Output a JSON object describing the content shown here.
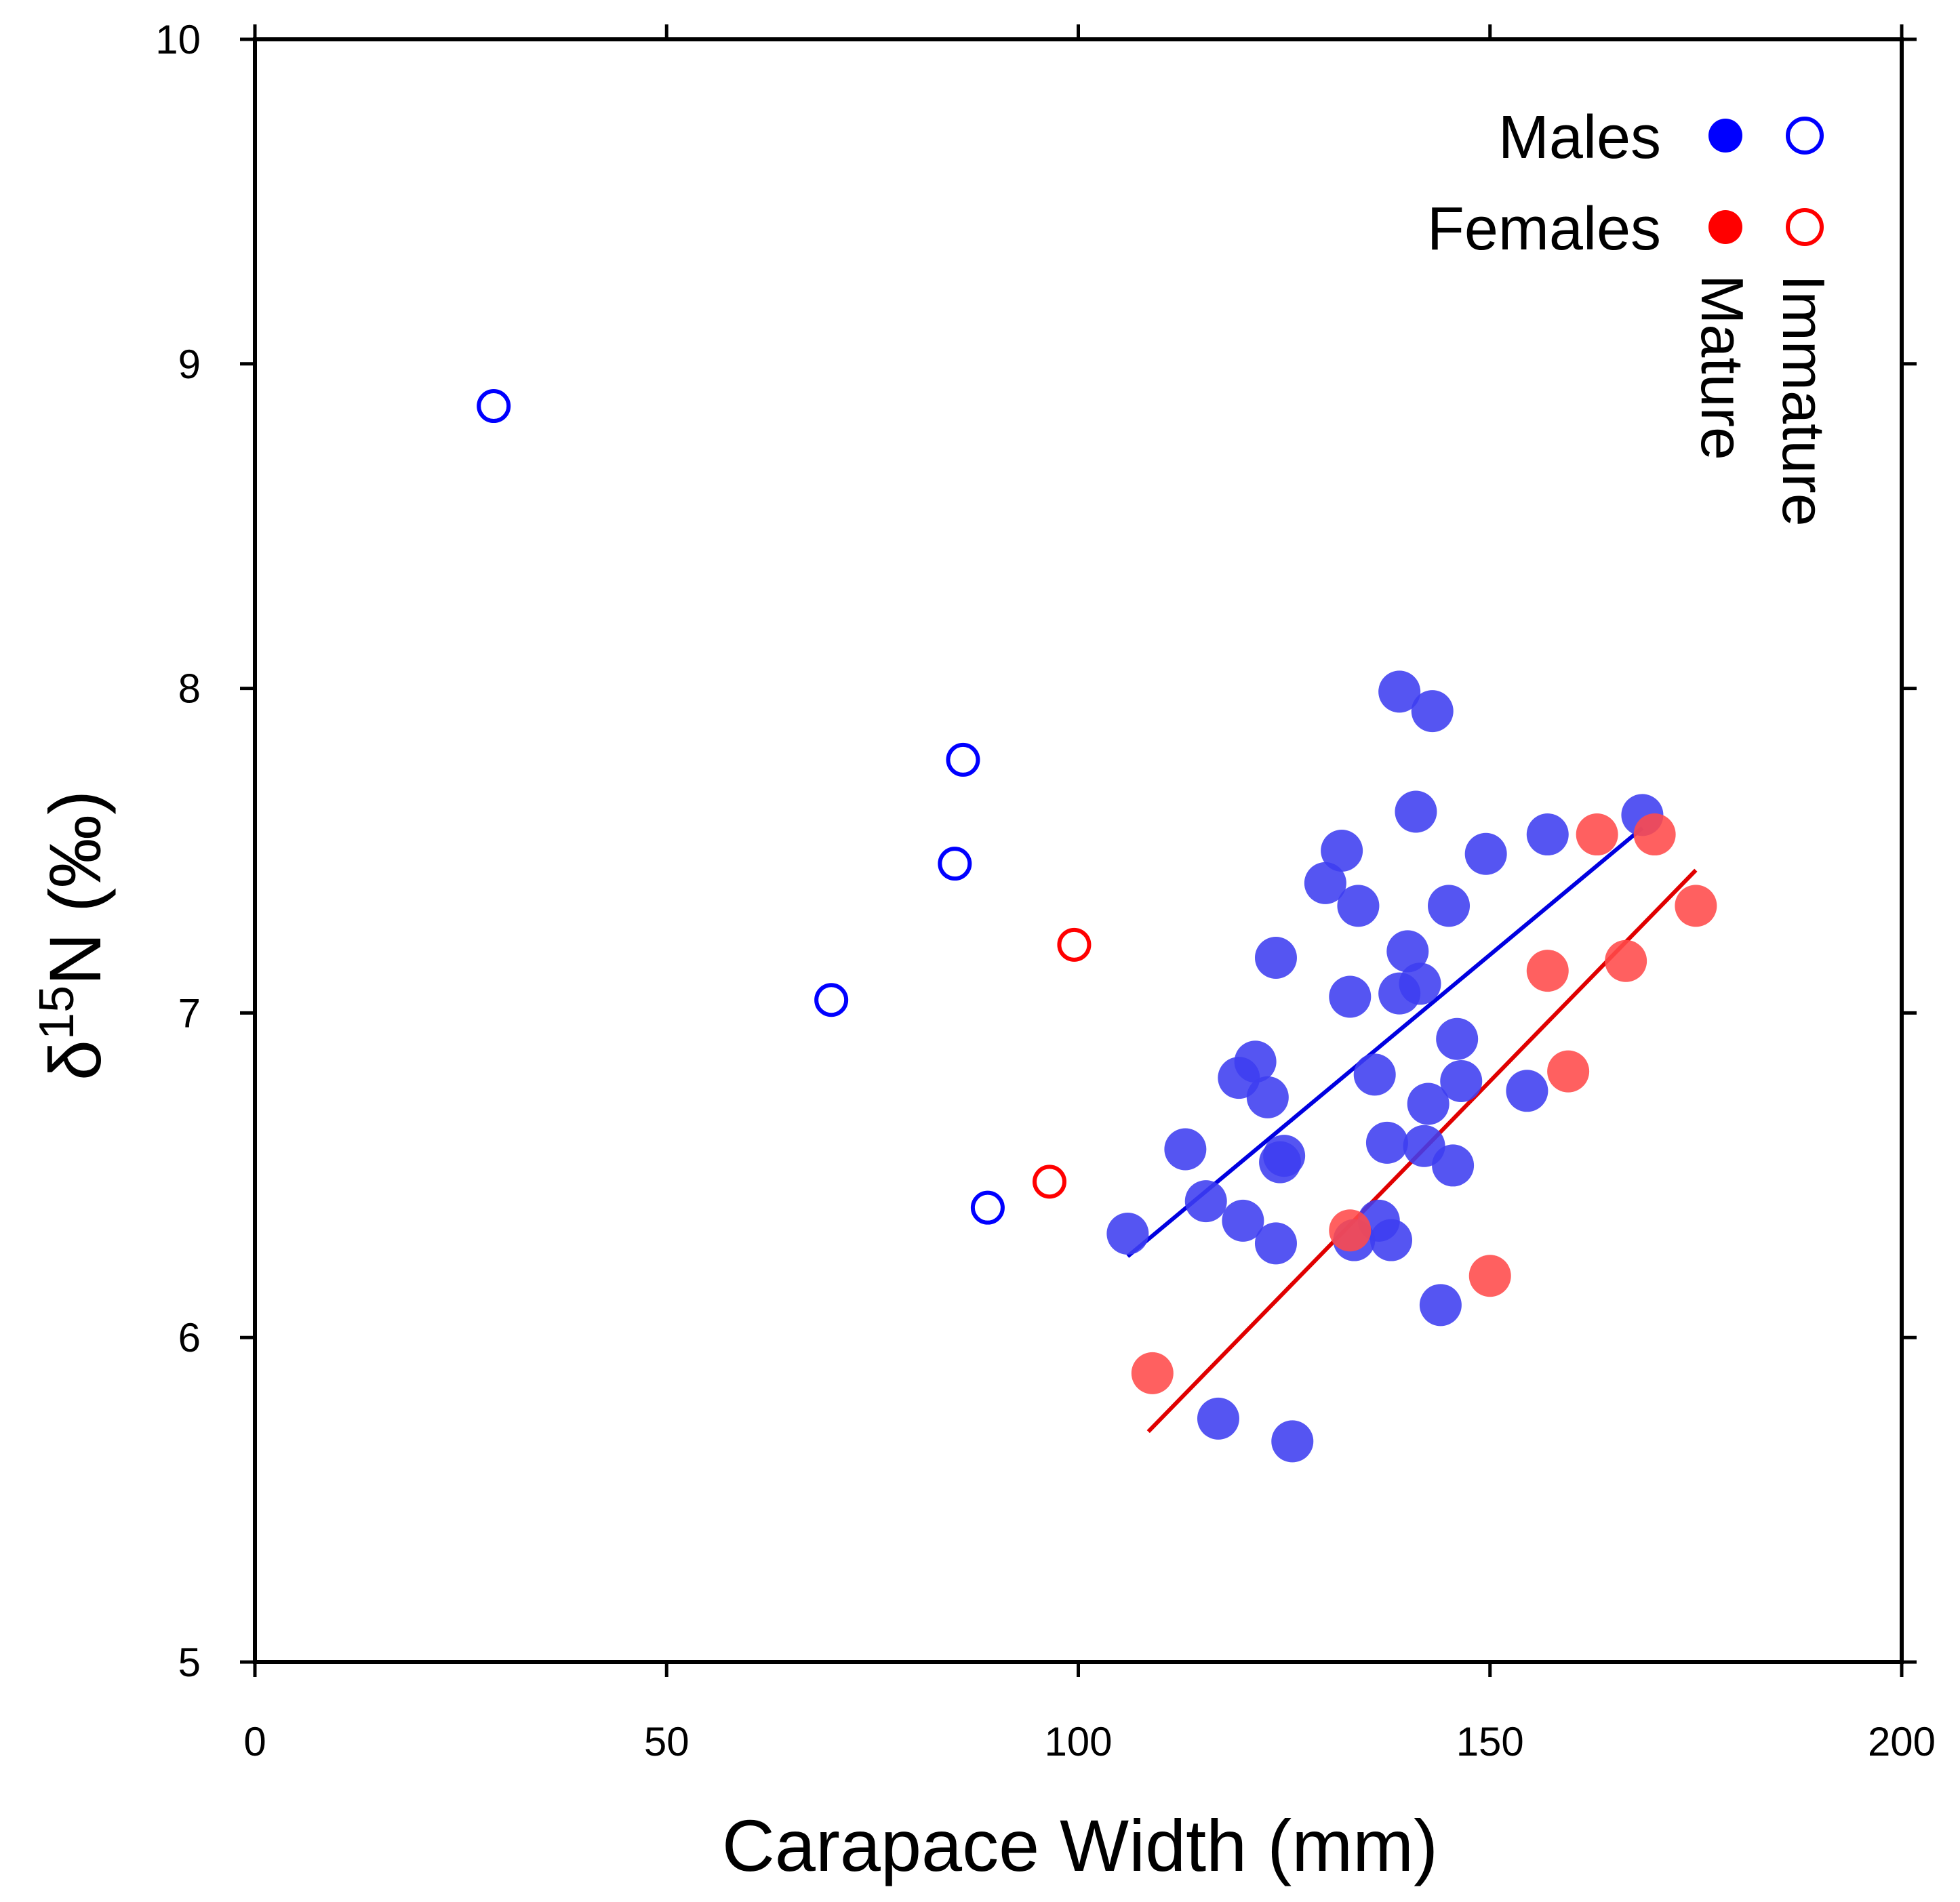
{
  "chart_data": {
    "type": "scatter",
    "title": "",
    "xlabel": "Carapace Width (mm)",
    "ylabel": {
      "prefix": "δ",
      "sup": "15",
      "suffix": "N (‰)"
    },
    "xlim": [
      0,
      200
    ],
    "ylim": [
      5,
      10
    ],
    "x_ticks": [
      0,
      50,
      100,
      150,
      200
    ],
    "x_tick_labels": [
      "0",
      "50",
      "100",
      "150",
      "200"
    ],
    "y_ticks": [
      5,
      6,
      7,
      8,
      9,
      10
    ],
    "y_tick_labels": [
      "5",
      "6",
      "7",
      "8",
      "9",
      "10"
    ],
    "grid": false,
    "legend": {
      "position": "top-right",
      "rows": [
        {
          "label": "Males",
          "color": "#0000ff"
        },
        {
          "label": "Females",
          "color": "#ff0000"
        }
      ],
      "columns": [
        {
          "label": "Mature",
          "filled": true
        },
        {
          "label": "Immature",
          "filled": false
        }
      ]
    },
    "series": [
      {
        "name": "Males Immature",
        "color": "#0000ff",
        "filled": false,
        "points": [
          [
            29,
            8.87
          ],
          [
            70,
            7.04
          ],
          [
            85,
            7.46
          ],
          [
            86,
            7.78
          ],
          [
            89,
            6.4
          ]
        ]
      },
      {
        "name": "Females Immature",
        "color": "#ff0000",
        "filled": false,
        "points": [
          [
            96.5,
            6.48
          ],
          [
            99.5,
            7.21
          ]
        ]
      },
      {
        "name": "Males Mature",
        "color": "#3d3df0",
        "filled": true,
        "points": [
          [
            106,
            6.32
          ],
          [
            113,
            6.58
          ],
          [
            115.5,
            6.42
          ],
          [
            117,
            5.75
          ],
          [
            119.5,
            6.8
          ],
          [
            120,
            6.36
          ],
          [
            121.5,
            6.85
          ],
          [
            123,
            6.74
          ],
          [
            124,
            6.29
          ],
          [
            124,
            7.17
          ],
          [
            124.5,
            6.54
          ],
          [
            125,
            6.56
          ],
          [
            126,
            5.68
          ],
          [
            130,
            7.4
          ],
          [
            132,
            7.5
          ],
          [
            133,
            7.05
          ],
          [
            133.5,
            6.3
          ],
          [
            134,
            7.33
          ],
          [
            136,
            6.81
          ],
          [
            136.5,
            6.36
          ],
          [
            137.5,
            6.6
          ],
          [
            138,
            6.3
          ],
          [
            139,
            7.06
          ],
          [
            139,
            7.99
          ],
          [
            140,
            7.19
          ],
          [
            141,
            7.62
          ],
          [
            141.5,
            7.09
          ],
          [
            142,
            6.59
          ],
          [
            142.5,
            6.72
          ],
          [
            143,
            7.93
          ],
          [
            144,
            6.1
          ],
          [
            145,
            7.33
          ],
          [
            145.5,
            6.53
          ],
          [
            146,
            6.92
          ],
          [
            146.5,
            6.79
          ],
          [
            149.5,
            7.49
          ],
          [
            154.5,
            6.76
          ],
          [
            157,
            7.55
          ],
          [
            168.5,
            7.61
          ]
        ]
      },
      {
        "name": "Females Mature",
        "color": "#ff4a4a",
        "filled": true,
        "points": [
          [
            109,
            5.89
          ],
          [
            133,
            6.33
          ],
          [
            150,
            6.19
          ],
          [
            157,
            7.13
          ],
          [
            159.5,
            6.82
          ],
          [
            163,
            7.55
          ],
          [
            166.5,
            7.16
          ],
          [
            170,
            7.55
          ],
          [
            175,
            7.33
          ]
        ]
      }
    ],
    "trendlines": [
      {
        "name": "Males Mature fit",
        "color": "#0000e0",
        "x": [
          106,
          168.5
        ],
        "y": [
          6.25,
          7.57
        ]
      },
      {
        "name": "Females Mature fit",
        "color": "#e00000",
        "x": [
          108.5,
          175
        ],
        "y": [
          5.71,
          7.44
        ]
      }
    ]
  }
}
